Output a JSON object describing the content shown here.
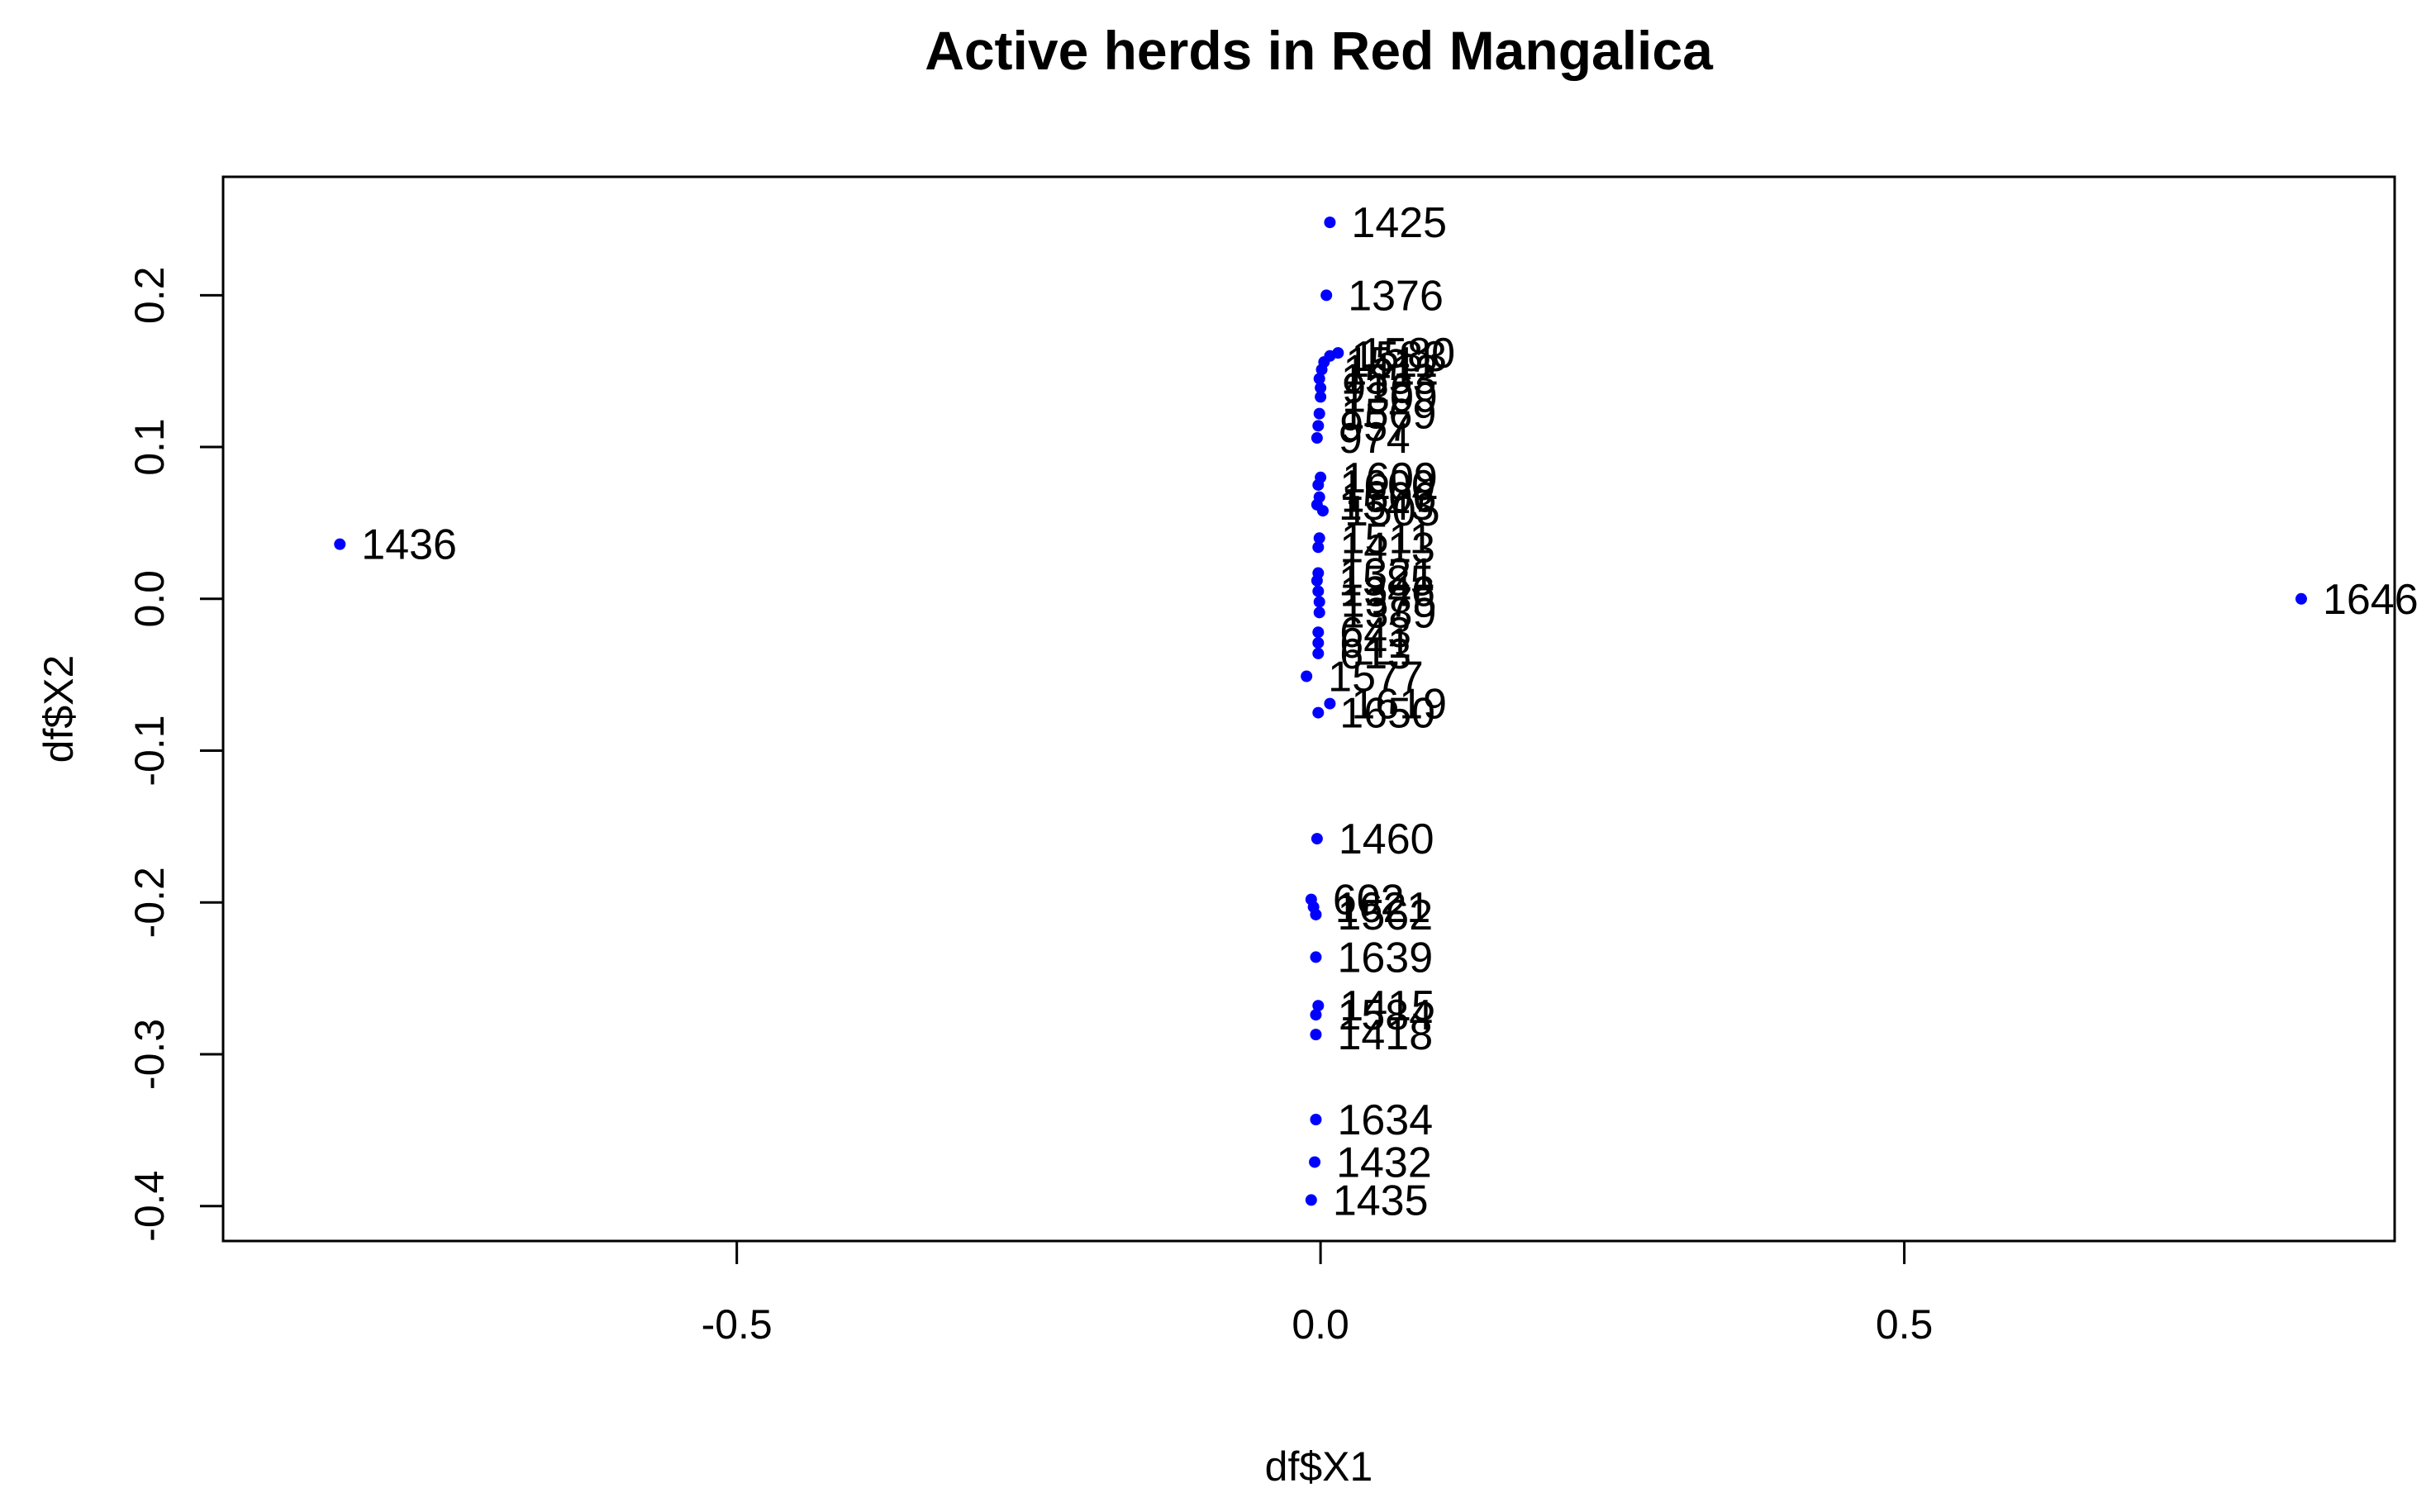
{
  "chart_data": {
    "type": "scatter",
    "title": "Active herds in Red Mangalica",
    "xlabel": "df$X1",
    "ylabel": "df$X2",
    "xlim": [
      -0.94,
      0.92
    ],
    "ylim": [
      -0.423,
      0.278
    ],
    "x_ticks": [
      -0.5,
      0.0,
      0.5
    ],
    "x_tick_labels": [
      "-0.5",
      "0.0",
      "0.5"
    ],
    "y_ticks": [
      -0.4,
      -0.3,
      -0.2,
      -0.1,
      0.0,
      0.1,
      0.2
    ],
    "y_tick_labels": [
      "-0.4",
      "-0.3",
      "-0.2",
      "-0.1",
      "0.0",
      "0.1",
      "0.2"
    ],
    "grid": false,
    "point_color": "#0000ff",
    "points": [
      {
        "x": 0.008,
        "y": 0.248,
        "label": "1425"
      },
      {
        "x": 0.005,
        "y": 0.2,
        "label": "1376"
      },
      {
        "x": 0.015,
        "y": 0.162,
        "label": "1580"
      },
      {
        "x": 0.008,
        "y": 0.16,
        "label": "1583"
      },
      {
        "x": 0.003,
        "y": 0.156,
        "label": "1511"
      },
      {
        "x": 0.001,
        "y": 0.151,
        "label": "1412"
      },
      {
        "x": -0.001,
        "y": 0.145,
        "label": "1553"
      },
      {
        "x": 0.0,
        "y": 0.139,
        "label": "916"
      },
      {
        "x": 0.0,
        "y": 0.133,
        "label": "1309"
      },
      {
        "x": -0.001,
        "y": 0.122,
        "label": "1569"
      },
      {
        "x": -0.002,
        "y": 0.114,
        "label": "957"
      },
      {
        "x": -0.003,
        "y": 0.106,
        "label": "974"
      },
      {
        "x": 0.0,
        "y": 0.08,
        "label": "1609"
      },
      {
        "x": -0.002,
        "y": 0.075,
        "label": "1600"
      },
      {
        "x": -0.001,
        "y": 0.067,
        "label": "1506"
      },
      {
        "x": -0.003,
        "y": 0.062,
        "label": "1543"
      },
      {
        "x": 0.002,
        "y": 0.058,
        "label": "1505"
      },
      {
        "x": -0.001,
        "y": 0.04,
        "label": "1511"
      },
      {
        "x": -0.002,
        "y": 0.034,
        "label": "1413"
      },
      {
        "x": -0.002,
        "y": 0.017,
        "label": "1321"
      },
      {
        "x": -0.003,
        "y": 0.012,
        "label": "1585"
      },
      {
        "x": -0.002,
        "y": 0.005,
        "label": "1346"
      },
      {
        "x": -0.001,
        "y": -0.002,
        "label": "1375"
      },
      {
        "x": -0.001,
        "y": -0.009,
        "label": "1389"
      },
      {
        "x": -0.002,
        "y": -0.022,
        "label": "643"
      },
      {
        "x": -0.002,
        "y": -0.029,
        "label": "641"
      },
      {
        "x": -0.002,
        "y": -0.036,
        "label": "613"
      },
      {
        "x": -0.012,
        "y": -0.051,
        "label": "1577"
      },
      {
        "x": 0.008,
        "y": -0.069,
        "label": "1619"
      },
      {
        "x": -0.002,
        "y": -0.075,
        "label": "1650"
      },
      {
        "x": -0.003,
        "y": -0.158,
        "label": "1460"
      },
      {
        "x": -0.008,
        "y": -0.198,
        "label": "602"
      },
      {
        "x": -0.006,
        "y": -0.203,
        "label": "1621"
      },
      {
        "x": -0.004,
        "y": -0.208,
        "label": "1562"
      },
      {
        "x": -0.004,
        "y": -0.236,
        "label": "1639"
      },
      {
        "x": -0.002,
        "y": -0.268,
        "label": "1415"
      },
      {
        "x": -0.004,
        "y": -0.274,
        "label": "1584"
      },
      {
        "x": -0.004,
        "y": -0.287,
        "label": "1418"
      },
      {
        "x": -0.004,
        "y": -0.343,
        "label": "1634"
      },
      {
        "x": -0.005,
        "y": -0.371,
        "label": "1432"
      },
      {
        "x": -0.008,
        "y": -0.396,
        "label": "1435"
      },
      {
        "x": -0.84,
        "y": 0.036,
        "label": "1436"
      },
      {
        "x": 0.84,
        "y": 0.0,
        "label": "1646"
      }
    ]
  }
}
